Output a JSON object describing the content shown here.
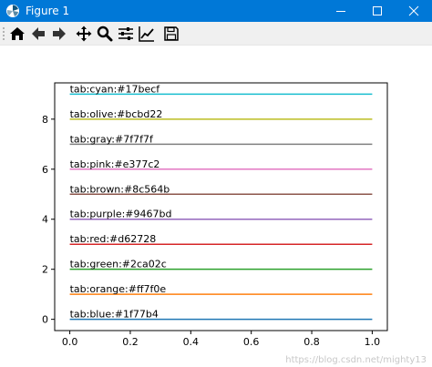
{
  "window": {
    "title": "Figure 1"
  },
  "toolbar": {
    "buttons": [
      {
        "name": "home-button",
        "icon": "home-icon"
      },
      {
        "name": "back-button",
        "icon": "back-arrow-icon"
      },
      {
        "name": "forward-button",
        "icon": "forward-arrow-icon"
      },
      {
        "name": "pan-button",
        "icon": "pan-icon"
      },
      {
        "name": "zoom-button",
        "icon": "zoom-icon"
      },
      {
        "name": "subplots-button",
        "icon": "sliders-icon"
      },
      {
        "name": "customize-button",
        "icon": "line-chart-icon"
      },
      {
        "name": "save-button",
        "icon": "save-icon"
      }
    ]
  },
  "chart_data": {
    "type": "line",
    "xlim": [
      -0.05,
      1.05
    ],
    "ylim": [
      -0.45,
      9.45
    ],
    "x_ticks": [
      0.0,
      0.2,
      0.4,
      0.6,
      0.8,
      1.0
    ],
    "x_tick_labels": [
      "0.0",
      "0.2",
      "0.4",
      "0.6",
      "0.8",
      "1.0"
    ],
    "y_ticks": [
      0,
      2,
      4,
      6,
      8
    ],
    "y_tick_labels": [
      "0",
      "2",
      "4",
      "6",
      "8"
    ],
    "grid": false,
    "series": [
      {
        "label": "tab:blue:#1f77b4",
        "color": "#1f77b4",
        "x": [
          0,
          1
        ],
        "y": [
          0,
          0
        ]
      },
      {
        "label": "tab:orange:#ff7f0e",
        "color": "#ff7f0e",
        "x": [
          0,
          1
        ],
        "y": [
          1,
          1
        ]
      },
      {
        "label": "tab:green:#2ca02c",
        "color": "#2ca02c",
        "x": [
          0,
          1
        ],
        "y": [
          2,
          2
        ]
      },
      {
        "label": "tab:red:#d62728",
        "color": "#d62728",
        "x": [
          0,
          1
        ],
        "y": [
          3,
          3
        ]
      },
      {
        "label": "tab:purple:#9467bd",
        "color": "#9467bd",
        "x": [
          0,
          1
        ],
        "y": [
          4,
          4
        ]
      },
      {
        "label": "tab:brown:#8c564b",
        "color": "#8c564b",
        "x": [
          0,
          1
        ],
        "y": [
          5,
          5
        ]
      },
      {
        "label": "tab:pink:#e377c2",
        "color": "#e377c2",
        "x": [
          0,
          1
        ],
        "y": [
          6,
          6
        ]
      },
      {
        "label": "tab:gray:#7f7f7f",
        "color": "#7f7f7f",
        "x": [
          0,
          1
        ],
        "y": [
          7,
          7
        ]
      },
      {
        "label": "tab:olive:#bcbd22",
        "color": "#bcbd22",
        "x": [
          0,
          1
        ],
        "y": [
          8,
          8
        ]
      },
      {
        "label": "tab:cyan:#17becf",
        "color": "#17becf",
        "x": [
          0,
          1
        ],
        "y": [
          9,
          9
        ]
      }
    ]
  },
  "watermark": "https://blog.csdn.net/mighty13"
}
